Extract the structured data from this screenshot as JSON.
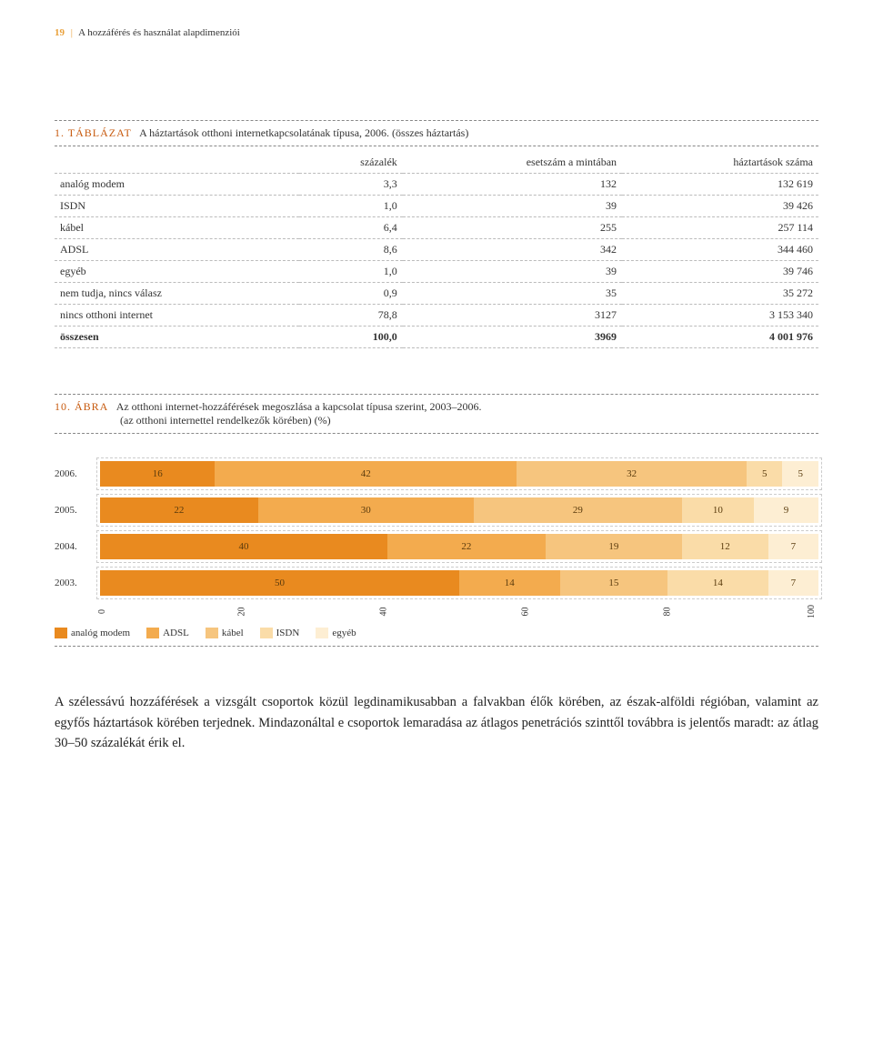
{
  "header": {
    "page_num": "19",
    "bar": "|",
    "text": "A hozzáférés és használat alapdimenziói"
  },
  "table_caption": {
    "label": "1. TÁBLÁZAT",
    "text": "A háztartások otthoni internetkapcsolatának típusa, 2006. (összes háztartás)"
  },
  "table": {
    "columns": [
      "",
      "százalék",
      "esetszám a mintában",
      "háztartások száma"
    ],
    "rows": [
      [
        "analóg modem",
        "3,3",
        "132",
        "132 619"
      ],
      [
        "ISDN",
        "1,0",
        "39",
        "39 426"
      ],
      [
        "kábel",
        "6,4",
        "255",
        "257 114"
      ],
      [
        "ADSL",
        "8,6",
        "342",
        "344 460"
      ],
      [
        "egyéb",
        "1,0",
        "39",
        "39 746"
      ],
      [
        "nem tudja, nincs válasz",
        "0,9",
        "35",
        "35 272"
      ],
      [
        "nincs otthoni internet",
        "78,8",
        "3127",
        "3 153 340"
      ]
    ],
    "totals": [
      "összesen",
      "100,0",
      "3969",
      "4 001 976"
    ]
  },
  "chart_caption": {
    "label": "10. ÁBRA",
    "line1": "Az otthoni internet-hozzáférések megoszlása a kapcsolat típusa szerint, 2003–2006.",
    "line2": "(az otthoni internettel rendelkezők körében) (%)"
  },
  "chart": {
    "type": "stacked-bar-horizontal",
    "series": [
      "analóg modem",
      "ADSL",
      "kábel",
      "ISDN",
      "egyéb"
    ],
    "colors": [
      "#e98a1f",
      "#f3ab4e",
      "#f6c57e",
      "#fadca8",
      "#fdeed3"
    ],
    "rows": [
      {
        "year": "2006.",
        "values": [
          16,
          42,
          32,
          5,
          5
        ]
      },
      {
        "year": "2005.",
        "values": [
          22,
          30,
          29,
          10,
          9
        ]
      },
      {
        "year": "2004.",
        "values": [
          40,
          22,
          19,
          12,
          7
        ]
      },
      {
        "year": "2003.",
        "values": [
          50,
          14,
          15,
          14,
          7
        ]
      }
    ],
    "axis": [
      "0",
      "20",
      "40",
      "60",
      "80",
      "100"
    ]
  },
  "body": "A szélessávú hozzáférések a vizsgált csoportok közül legdinamikusabban a falvakban élők körében, az észak-alföldi régióban, valamint az egyfős háztartások körében terjednek. Mindazonáltal e csoportok lemaradása az átlagos penetrációs szinttől továbbra is jelentős maradt: az átlag 30–50 százalékát érik el."
}
